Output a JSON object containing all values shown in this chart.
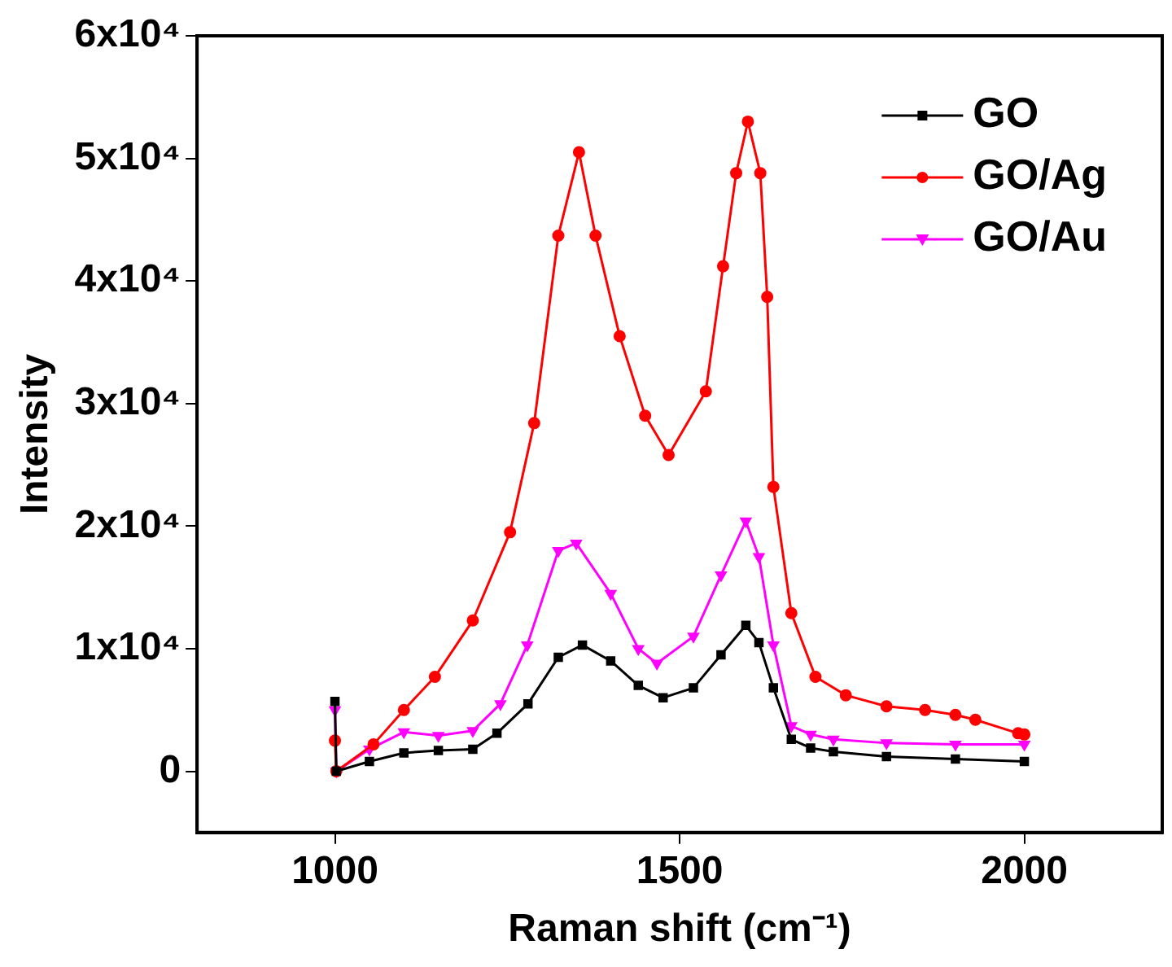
{
  "chart_data": {
    "type": "line",
    "xlabel": "Raman shift (cm⁻¹)",
    "ylabel": "Intensity",
    "xlim": [
      800,
      2200
    ],
    "xticks": [
      1000,
      1500,
      2000
    ],
    "ylim": [
      -5000,
      60000
    ],
    "yticks": [
      {
        "value": 0,
        "label": "0"
      },
      {
        "value": 10000,
        "label": "1x10⁴"
      },
      {
        "value": 20000,
        "label": "2x10⁴"
      },
      {
        "value": 30000,
        "label": "3x10⁴"
      },
      {
        "value": 40000,
        "label": "4x10⁴"
      },
      {
        "value": 50000,
        "label": "5x10⁴"
      },
      {
        "value": 60000,
        "label": "6x10⁴"
      }
    ],
    "grid": false,
    "legend": "top right",
    "series": [
      {
        "name": "GO",
        "color": "#000000",
        "marker": "square",
        "x": [
          1000,
          1002,
          1050,
          1100,
          1150,
          1200,
          1235,
          1280,
          1324,
          1359,
          1400,
          1440,
          1476,
          1520,
          1560,
          1596,
          1615,
          1636,
          1662,
          1690,
          1723,
          1800,
          1900,
          2000
        ],
        "values": [
          5700,
          0,
          800,
          1500,
          1700,
          1800,
          3100,
          5500,
          9300,
          10300,
          9000,
          7000,
          6000,
          6800,
          9500,
          11900,
          10500,
          6800,
          2600,
          1900,
          1600,
          1200,
          1000,
          800
        ]
      },
      {
        "name": "GO/Ag",
        "color": "#ff0000",
        "marker": "circle",
        "x": [
          1000,
          1002,
          1056,
          1100,
          1145,
          1200,
          1254,
          1289,
          1324,
          1354,
          1378,
          1413,
          1450,
          1484,
          1538,
          1563,
          1582,
          1599,
          1617,
          1627,
          1636,
          1662,
          1697,
          1741,
          1800,
          1856,
          1900,
          1929,
          1991,
          2000
        ],
        "values": [
          2500,
          0,
          2200,
          5000,
          7700,
          12300,
          19500,
          28400,
          43700,
          50500,
          43700,
          35500,
          29000,
          25800,
          31000,
          41200,
          48800,
          53000,
          48800,
          38700,
          23200,
          12900,
          7700,
          6200,
          5300,
          5000,
          4600,
          4200,
          3100,
          3000
        ]
      },
      {
        "name": "GO/Au",
        "color": "#ff00ff",
        "marker": "triangle",
        "x": [
          1000,
          1002,
          1050,
          1100,
          1150,
          1200,
          1240,
          1279,
          1324,
          1350,
          1400,
          1440,
          1467,
          1520,
          1560,
          1596,
          1615,
          1636,
          1662,
          1690,
          1723,
          1800,
          1900,
          2000
        ],
        "values": [
          5000,
          0,
          1800,
          3200,
          2900,
          3300,
          5500,
          10300,
          18000,
          18600,
          14500,
          10000,
          8800,
          11000,
          16000,
          20400,
          17500,
          10300,
          3700,
          3000,
          2600,
          2300,
          2200,
          2200
        ]
      }
    ]
  }
}
